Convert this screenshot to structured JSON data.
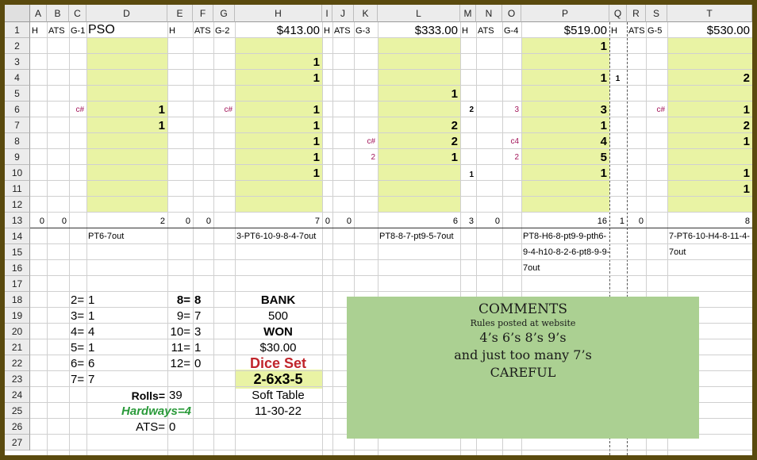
{
  "columns": [
    "A",
    "B",
    "C",
    "D",
    "E",
    "F",
    "G",
    "H",
    "I",
    "J",
    "K",
    "L",
    "M",
    "N",
    "O",
    "P",
    "Q",
    "R",
    "S",
    "T"
  ],
  "rows": [
    "1",
    "2",
    "3",
    "4",
    "5",
    "6",
    "7",
    "8",
    "9",
    "10",
    "11",
    "12",
    "13",
    "14",
    "15",
    "16",
    "17",
    "18",
    "19",
    "20",
    "21",
    "22",
    "23",
    "24",
    "25",
    "26",
    "27"
  ],
  "row1": {
    "a": "H",
    "b": "ATS",
    "c": "G-1",
    "d": "PSO",
    "e": "H",
    "f": "ATS",
    "g": "G-2",
    "h": "$413.00",
    "i": "H",
    "j": "ATS",
    "k": "G-3",
    "l": "$333.00",
    "m": "H",
    "n": "ATS",
    "o": "G-4",
    "p": "$519.00",
    "q": "H",
    "r": "ATS",
    "s": "G-5",
    "t": "$530.00"
  },
  "game1": {
    "marker": "c#",
    "d": [
      "1",
      "1"
    ]
  },
  "game2": {
    "marker": "c#",
    "h": [
      "1",
      "1",
      "1",
      "1",
      "1",
      "1",
      "1"
    ]
  },
  "game3": {
    "k": [
      "c#",
      "2"
    ],
    "l": [
      "1",
      "2",
      "2",
      "1"
    ]
  },
  "game4": {
    "m": [
      "2",
      "1"
    ],
    "o": [
      "3",
      "c4",
      "2"
    ],
    "p": [
      "1",
      "1",
      "3",
      "1",
      "4",
      "5",
      "1"
    ]
  },
  "game5": {
    "q": "1",
    "s": "c#",
    "t": [
      "2",
      "1",
      "2",
      "1",
      "1",
      "1"
    ]
  },
  "row13": {
    "a": "0",
    "b": "0",
    "d": "2",
    "e": "0",
    "f": "0",
    "h": "7",
    "i": "0",
    "j": "0",
    "l": "6",
    "m": "3",
    "n": "0",
    "p": "16",
    "q": "1",
    "r": "0",
    "t": "8"
  },
  "sequences": {
    "g1": "PT6-7out",
    "g2": "3-PT6-10-9-8-4-7out",
    "g3": "PT8-8-7-pt9-5-7out",
    "g4": [
      "PT8-H6-8-pt9-9-pth6-",
      "9-4-h10-8-2-6-pt8-9-9-",
      "7out"
    ],
    "g5": [
      "7-PT6-10-H4-8-11-4-",
      "7out"
    ]
  },
  "counts_left": [
    {
      "k": "2=",
      "v": "1"
    },
    {
      "k": "3=",
      "v": "1"
    },
    {
      "k": "4=",
      "v": "4"
    },
    {
      "k": "5=",
      "v": "1"
    },
    {
      "k": "6=",
      "v": "6"
    },
    {
      "k": "7=",
      "v": "7"
    }
  ],
  "counts_right": [
    {
      "k": "8=",
      "v": "8"
    },
    {
      "k": "9=",
      "v": "7"
    },
    {
      "k": "10=",
      "v": "3"
    },
    {
      "k": "11=",
      "v": "1"
    },
    {
      "k": "12=",
      "v": "0"
    }
  ],
  "summary": {
    "rolls_label": "Rolls=",
    "rolls": "39",
    "hardways": "Hardways=4",
    "ats_label": "ATS=",
    "ats": "0"
  },
  "bank": {
    "bank_label": "BANK",
    "bank": "500",
    "won_label": "WON",
    "won": "$30.00",
    "dice_label": "Dice Set",
    "dice": "2-6x3-5",
    "table": "Soft Table",
    "date": "11-30-22"
  },
  "comments": {
    "title": "COMMENTS",
    "sub": "Rules posted at website",
    "l1": "4’s 6’s 8’s 9’s",
    "l2": "and just too many 7’s",
    "l3": "CAREFUL"
  },
  "colors": {
    "fill": "#e9f3a4",
    "comments": "#abd092",
    "marker": "#a3165a",
    "dice_set": "#c0252b",
    "hardways": "#2a9a3a",
    "frame": "#5a4a0e"
  }
}
